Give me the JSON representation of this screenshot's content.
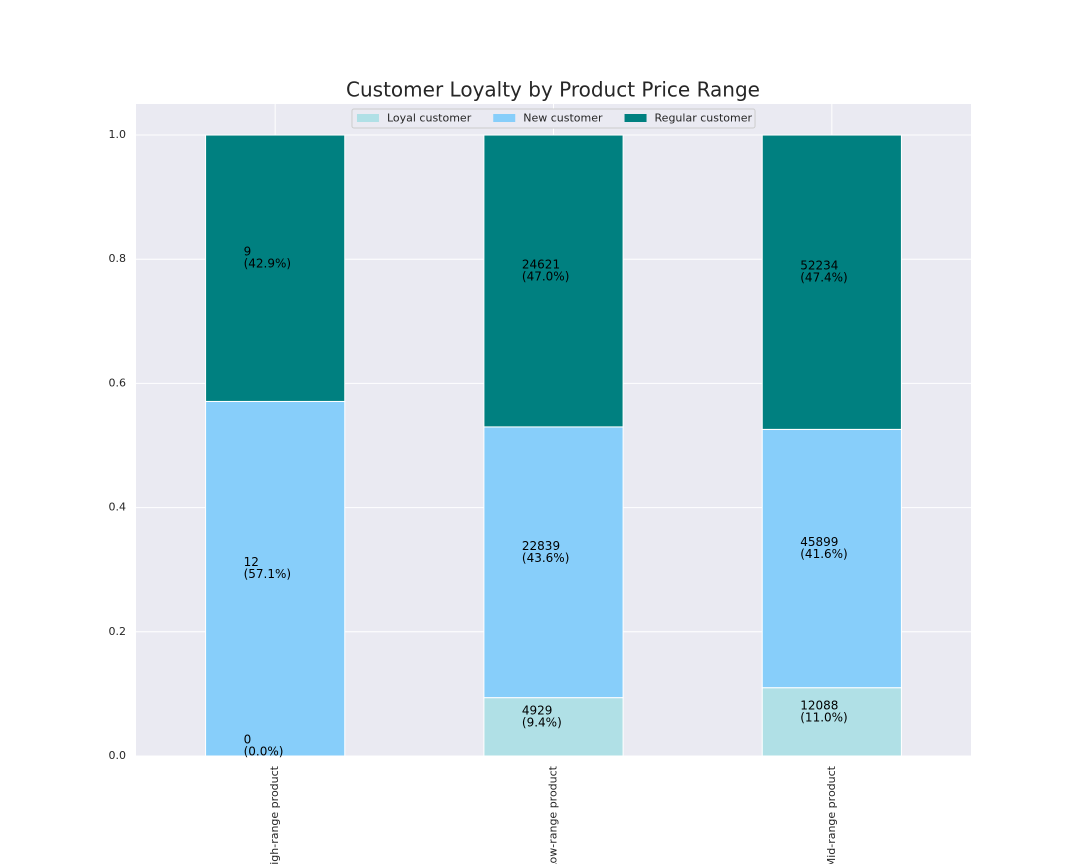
{
  "chart_data": {
    "type": "stacked-bar-100",
    "title": "Customer Loyalty by Product Price Range",
    "categories": [
      "High-range product",
      "Low-range product",
      "Mid-range product"
    ],
    "series": [
      {
        "name": "Loyal customer",
        "color": "#b0e0e6",
        "values": [
          0.0,
          0.094,
          0.11
        ],
        "value_labels": [
          "(0.0%)",
          "(9.4%)",
          "(11.0%)"
        ],
        "counts": [
          0,
          4929,
          12088
        ]
      },
      {
        "name": "New customer",
        "color": "#87cefa",
        "values": [
          0.571,
          0.436,
          0.416
        ],
        "value_labels": [
          "(57.1%)",
          "(43.6%)",
          "(41.6%)"
        ],
        "counts": [
          12,
          22839,
          45899
        ]
      },
      {
        "name": "Regular customer",
        "color": "#008080",
        "values": [
          0.429,
          0.47,
          0.474
        ],
        "value_labels": [
          "(42.9%)",
          "(47.0%)",
          "(47.4%)"
        ],
        "counts": [
          9,
          24621,
          52234
        ]
      }
    ],
    "ylim": [
      0,
      1.05
    ],
    "yticks": [
      {
        "value": 0,
        "label": "0.0"
      },
      {
        "value": 0.2,
        "label": "0.2"
      },
      {
        "value": 0.4,
        "label": "0.4"
      },
      {
        "value": 0.6,
        "label": "0.6"
      },
      {
        "value": 0.8,
        "label": "0.8"
      },
      {
        "value": 1.0,
        "label": "1.0"
      }
    ],
    "grid": true,
    "legend": "upper center"
  }
}
